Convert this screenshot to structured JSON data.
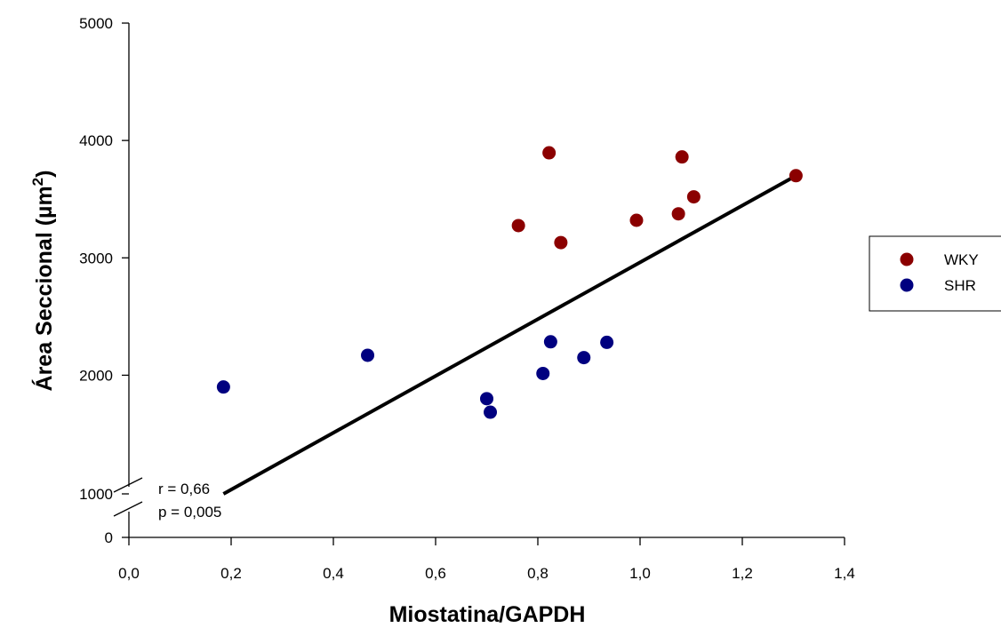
{
  "chart_data": {
    "type": "scatter",
    "title": "",
    "xlabel": "Miostatina/GAPDH",
    "ylabel_main": "Área Seccional (µm",
    "ylabel_sup": "2",
    "ylabel_close": ")",
    "xlim": [
      0.0,
      1.4
    ],
    "ylim": [
      0,
      5000
    ],
    "y_axis_break": [
      1000,
      1500
    ],
    "x_ticks": [
      {
        "value": 0.0,
        "label": "0,0"
      },
      {
        "value": 0.2,
        "label": "0,2"
      },
      {
        "value": 0.4,
        "label": "0,4"
      },
      {
        "value": 0.6,
        "label": "0,6"
      },
      {
        "value": 0.8,
        "label": "0,8"
      },
      {
        "value": 1.0,
        "label": "1,0"
      },
      {
        "value": 1.2,
        "label": "1,2"
      },
      {
        "value": 1.4,
        "label": "1,4"
      }
    ],
    "y_ticks": [
      {
        "value": 0,
        "label": "0"
      },
      {
        "value": 1000,
        "label": "1000"
      },
      {
        "value": 2000,
        "label": "2000"
      },
      {
        "value": 3000,
        "label": "3000"
      },
      {
        "value": 4000,
        "label": "4000"
      },
      {
        "value": 5000,
        "label": "5000"
      }
    ],
    "grid": false,
    "legend_position": "right",
    "series": [
      {
        "name": "WKY",
        "color": "#8b0000",
        "points": [
          {
            "x": 0.762,
            "y": 3275
          },
          {
            "x": 0.822,
            "y": 3895
          },
          {
            "x": 0.845,
            "y": 3130
          },
          {
            "x": 0.993,
            "y": 3320
          },
          {
            "x": 1.075,
            "y": 3375
          },
          {
            "x": 1.082,
            "y": 3860
          },
          {
            "x": 1.105,
            "y": 3520
          },
          {
            "x": 1.305,
            "y": 3700
          }
        ]
      },
      {
        "name": "SHR",
        "color": "#000080",
        "points": [
          {
            "x": 0.185,
            "y": 1900
          },
          {
            "x": 0.467,
            "y": 2170
          },
          {
            "x": 0.7,
            "y": 1800
          },
          {
            "x": 0.707,
            "y": 1685
          },
          {
            "x": 0.81,
            "y": 2015
          },
          {
            "x": 0.825,
            "y": 2285
          },
          {
            "x": 0.89,
            "y": 2150
          },
          {
            "x": 0.935,
            "y": 2280
          }
        ]
      }
    ],
    "regression_line": {
      "color": "#000000",
      "from": {
        "x": 0.185,
        "y": 1455
      },
      "to": {
        "x": 1.305,
        "y": 3700
      }
    },
    "annotations": [
      "r = 0,66",
      "p = 0,005"
    ]
  }
}
